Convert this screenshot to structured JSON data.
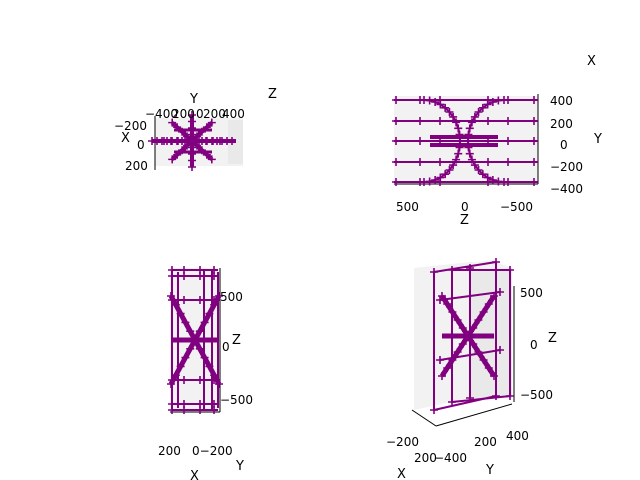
{
  "colors": {
    "series": "#800080",
    "pane": "#f2f2f2"
  },
  "chart_data": [
    {
      "type": "3d-line",
      "view": "top",
      "series_color": "#800080",
      "axis_labels": {
        "x": "X",
        "y": "Y",
        "z": "Z"
      },
      "ticks": {
        "top": [
          "−400",
          "200",
          "0",
          "200",
          "400"
        ],
        "left": [
          "−200",
          "0",
          "200"
        ]
      }
    },
    {
      "type": "3d-line",
      "view": "front",
      "series_color": "#800080",
      "axis_labels": {
        "x": "X",
        "y": "Y",
        "z": "Z"
      },
      "ticks": {
        "right": [
          "400",
          "200",
          "0",
          "−200",
          "−400"
        ],
        "bottom": [
          "500",
          "0",
          "−500"
        ]
      }
    },
    {
      "type": "3d-line",
      "view": "side",
      "series_color": "#800080",
      "axis_labels": {
        "x": "X",
        "y": "Y",
        "z": "Z"
      },
      "ticks": {
        "right": [
          "500",
          "0",
          "−500"
        ],
        "bottom": [
          "200",
          "0−200"
        ]
      }
    },
    {
      "type": "3d-line",
      "view": "isometric",
      "series_color": "#800080",
      "axis_labels": {
        "x": "X",
        "y": "Y",
        "z": "Z"
      },
      "ticks": {
        "right": [
          "500",
          "0",
          "−500"
        ],
        "bottom_x": [
          "−200",
          "200",
          "−400"
        ],
        "bottom_y": [
          "200",
          "400"
        ]
      }
    }
  ]
}
